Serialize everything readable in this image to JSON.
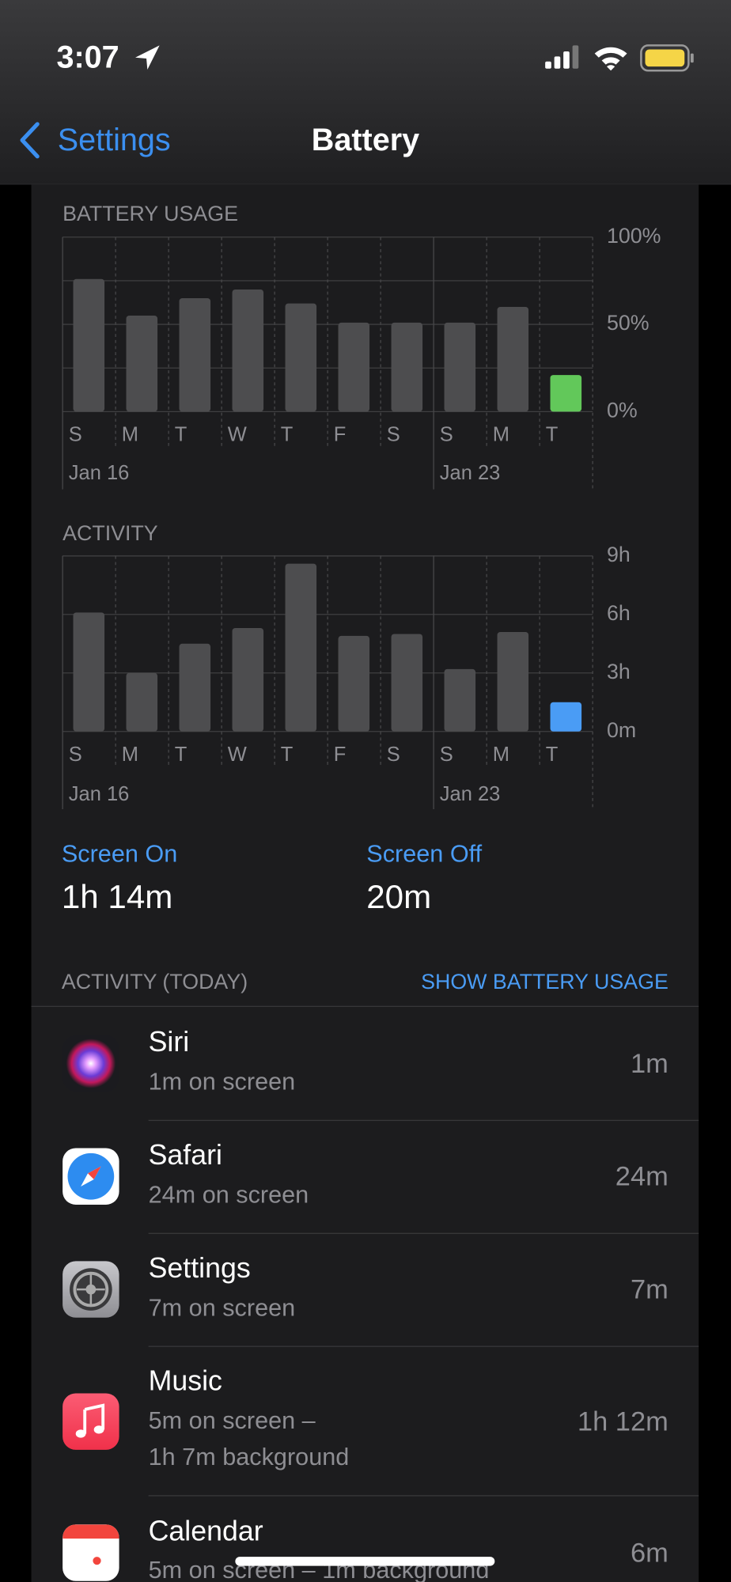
{
  "status_bar": {
    "time": "3:07"
  },
  "nav": {
    "back": "Settings",
    "title": "Battery"
  },
  "chart_data": [
    {
      "type": "bar",
      "title": "BATTERY USAGE",
      "categories": [
        "S",
        "M",
        "T",
        "W",
        "T",
        "F",
        "S",
        "S",
        "M",
        "T"
      ],
      "date_labels": [
        "Jan 16",
        null,
        null,
        null,
        null,
        null,
        null,
        "Jan 23",
        null,
        null
      ],
      "values": [
        76,
        55,
        65,
        70,
        62,
        51,
        51,
        51,
        60,
        21
      ],
      "colors": [
        "#4d4d4f",
        "#4d4d4f",
        "#4d4d4f",
        "#4d4d4f",
        "#4d4d4f",
        "#4d4d4f",
        "#4d4d4f",
        "#4d4d4f",
        "#4d4d4f",
        "#62c85a"
      ],
      "ylim": [
        0,
        100
      ],
      "yticks": [
        {
          "value": 0,
          "label": "0%"
        },
        {
          "value": 50,
          "label": "50%"
        },
        {
          "value": 100,
          "label": "100%"
        }
      ],
      "minor_yticks": [
        25,
        75
      ],
      "grid": true
    },
    {
      "type": "bar",
      "title": "ACTIVITY",
      "categories": [
        "S",
        "M",
        "T",
        "W",
        "T",
        "F",
        "S",
        "S",
        "M",
        "T"
      ],
      "date_labels": [
        "Jan 16",
        null,
        null,
        null,
        null,
        null,
        null,
        "Jan 23",
        null,
        null
      ],
      "values": [
        6.1,
        3.0,
        4.5,
        5.3,
        8.6,
        4.9,
        5.0,
        3.2,
        5.1,
        1.5
      ],
      "colors": [
        "#4d4d4f",
        "#4d4d4f",
        "#4d4d4f",
        "#4d4d4f",
        "#4d4d4f",
        "#4d4d4f",
        "#4d4d4f",
        "#4d4d4f",
        "#4d4d4f",
        "#4a9cf5"
      ],
      "ylim": [
        0,
        9
      ],
      "yticks": [
        {
          "value": 0,
          "label": "0m"
        },
        {
          "value": 3,
          "label": "3h"
        },
        {
          "value": 6,
          "label": "6h"
        },
        {
          "value": 9,
          "label": "9h"
        }
      ],
      "grid": true
    }
  ],
  "screen": {
    "on_label": "Screen On",
    "on_value": "1h 14m",
    "off_label": "Screen Off",
    "off_value": "20m"
  },
  "activity": {
    "header": "ACTIVITY (TODAY)",
    "action": "SHOW BATTERY USAGE",
    "apps": [
      {
        "name": "Siri",
        "detail": [
          "1m on screen"
        ],
        "time": "1m"
      },
      {
        "name": "Safari",
        "detail": [
          "24m on screen"
        ],
        "time": "24m"
      },
      {
        "name": "Settings",
        "detail": [
          "7m on screen"
        ],
        "time": "7m"
      },
      {
        "name": "Music",
        "detail": [
          "5m on screen –",
          "1h 7m background"
        ],
        "time": "1h 12m"
      },
      {
        "name": "Calendar",
        "detail": [
          "5m on screen – 1m background"
        ],
        "time": "6m"
      }
    ]
  }
}
